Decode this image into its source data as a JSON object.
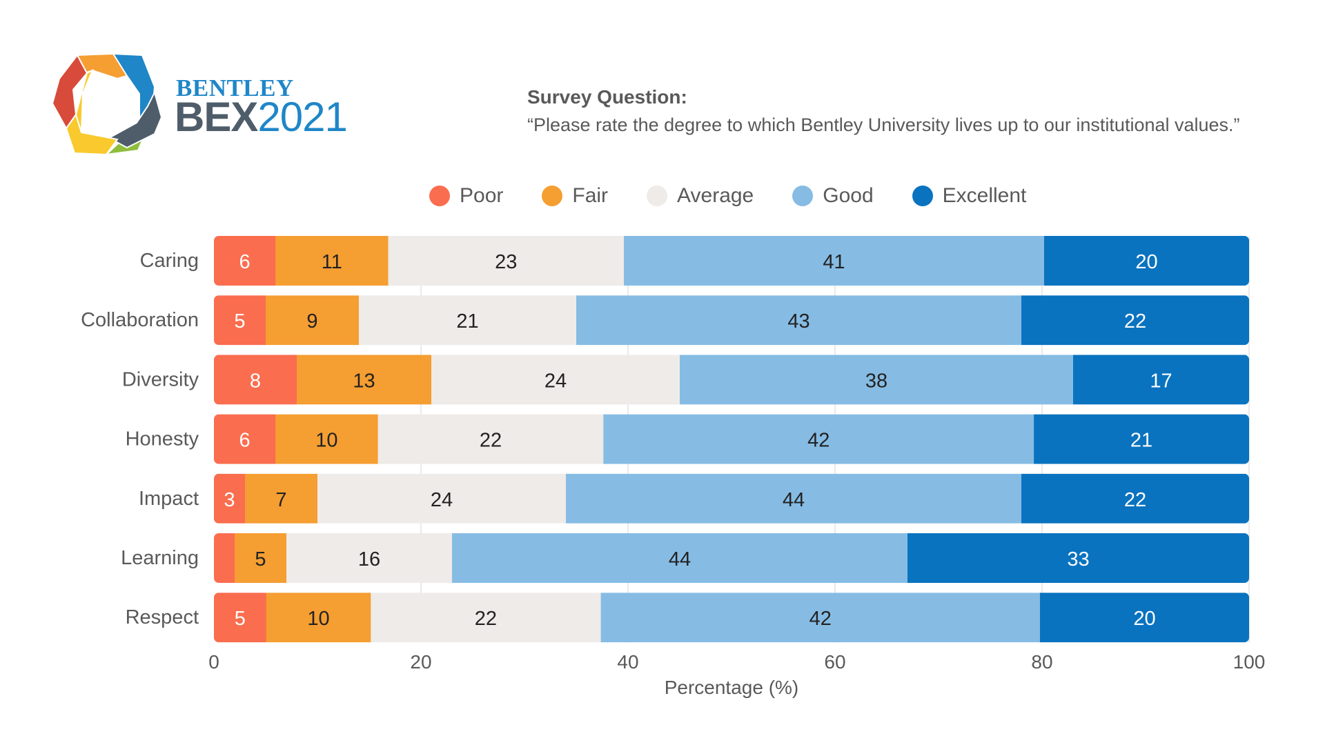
{
  "brand": {
    "name": "BENTLEY",
    "program": "BEX",
    "year": "2021"
  },
  "survey": {
    "title": "Survey Question:",
    "question": "“Please rate the degree to which Bentley University lives up to our institutional values.”"
  },
  "chart_data": {
    "type": "bar",
    "orientation": "horizontal",
    "stacked": true,
    "categories": [
      "Caring",
      "Collaboration",
      "Diversity",
      "Honesty",
      "Impact",
      "Learning",
      "Respect"
    ],
    "series": [
      {
        "name": "Poor",
        "color": "#fa6d4f",
        "values": [
          6,
          5,
          8,
          6,
          3,
          2,
          5
        ],
        "labels": [
          "6",
          "5",
          "8",
          "6",
          "3",
          "",
          "5"
        ]
      },
      {
        "name": "Fair",
        "color": "#f59e32",
        "values": [
          11,
          9,
          13,
          10,
          7,
          5,
          10
        ],
        "labels": [
          "11",
          "9",
          "13",
          "10",
          "7",
          "5",
          "10"
        ]
      },
      {
        "name": "Average",
        "color": "#eeebe8",
        "values": [
          23,
          21,
          24,
          22,
          24,
          16,
          22
        ],
        "labels": [
          "23",
          "21",
          "24",
          "22",
          "24",
          "16",
          "22"
        ]
      },
      {
        "name": "Good",
        "color": "#86bce4",
        "values": [
          41,
          43,
          38,
          42,
          44,
          44,
          42
        ],
        "labels": [
          "41",
          "43",
          "38",
          "42",
          "44",
          "44",
          "42"
        ]
      },
      {
        "name": "Excellent",
        "color": "#0a73bf",
        "values": [
          20,
          22,
          17,
          21,
          22,
          33,
          20
        ],
        "labels": [
          "20",
          "22",
          "17",
          "21",
          "22",
          "33",
          "20"
        ]
      }
    ],
    "xlabel": "Percentage (%)",
    "ylabel": "",
    "xlim": [
      0,
      100
    ],
    "xticks": [
      "0",
      "20",
      "40",
      "60",
      "80",
      "100"
    ],
    "grid": "vertical",
    "legend": "top"
  }
}
